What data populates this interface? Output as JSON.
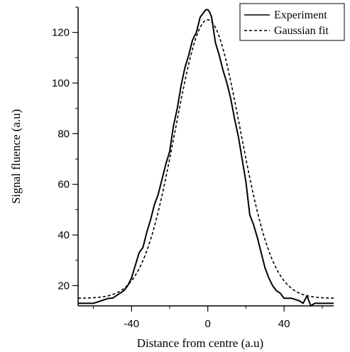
{
  "chart_data": {
    "type": "line",
    "xlabel": "Distance from centre (a.u)",
    "ylabel": "Signal fluence (a.u)",
    "xlim": [
      -68,
      66
    ],
    "ylim": [
      12,
      130
    ],
    "xticks": [
      -40,
      0,
      40
    ],
    "yticks": [
      20,
      40,
      60,
      80,
      100,
      120
    ],
    "grid": false,
    "legend_position": "top-right",
    "series": [
      {
        "name": "Experiment",
        "style": "solid",
        "x": [
          -68,
          -60,
          -56,
          -52,
          -50,
          -48,
          -46,
          -44,
          -42,
          -40,
          -38,
          -36,
          -34,
          -32,
          -30,
          -28,
          -26,
          -24,
          -22,
          -20,
          -18,
          -16,
          -14,
          -12,
          -10,
          -8,
          -6,
          -4,
          -2,
          -1,
          0,
          1,
          2,
          4,
          6,
          8,
          10,
          12,
          14,
          16,
          18,
          20,
          22,
          24,
          26,
          28,
          30,
          32,
          34,
          36,
          38,
          40,
          44,
          48,
          50,
          52,
          54,
          56,
          58,
          62,
          66
        ],
        "y": [
          13,
          13,
          14,
          15,
          15,
          16,
          17,
          18,
          20,
          23,
          28,
          33,
          35,
          41,
          46,
          52,
          56,
          62,
          68,
          73,
          83,
          90,
          99,
          106,
          111,
          117,
          120,
          126,
          128,
          129,
          129,
          128,
          126,
          116,
          111,
          105,
          100,
          94,
          86,
          79,
          70,
          61,
          48,
          44,
          39,
          33,
          27,
          23,
          20,
          18,
          17,
          15,
          15,
          14,
          13,
          16,
          12,
          13,
          13,
          13,
          13
        ]
      },
      {
        "name": "Gaussian fit",
        "style": "dashed",
        "gaussian": {
          "baseline": 15,
          "amplitude": 110,
          "center": 0,
          "sigma": 17
        },
        "x_range": [
          -68,
          66
        ]
      }
    ]
  }
}
